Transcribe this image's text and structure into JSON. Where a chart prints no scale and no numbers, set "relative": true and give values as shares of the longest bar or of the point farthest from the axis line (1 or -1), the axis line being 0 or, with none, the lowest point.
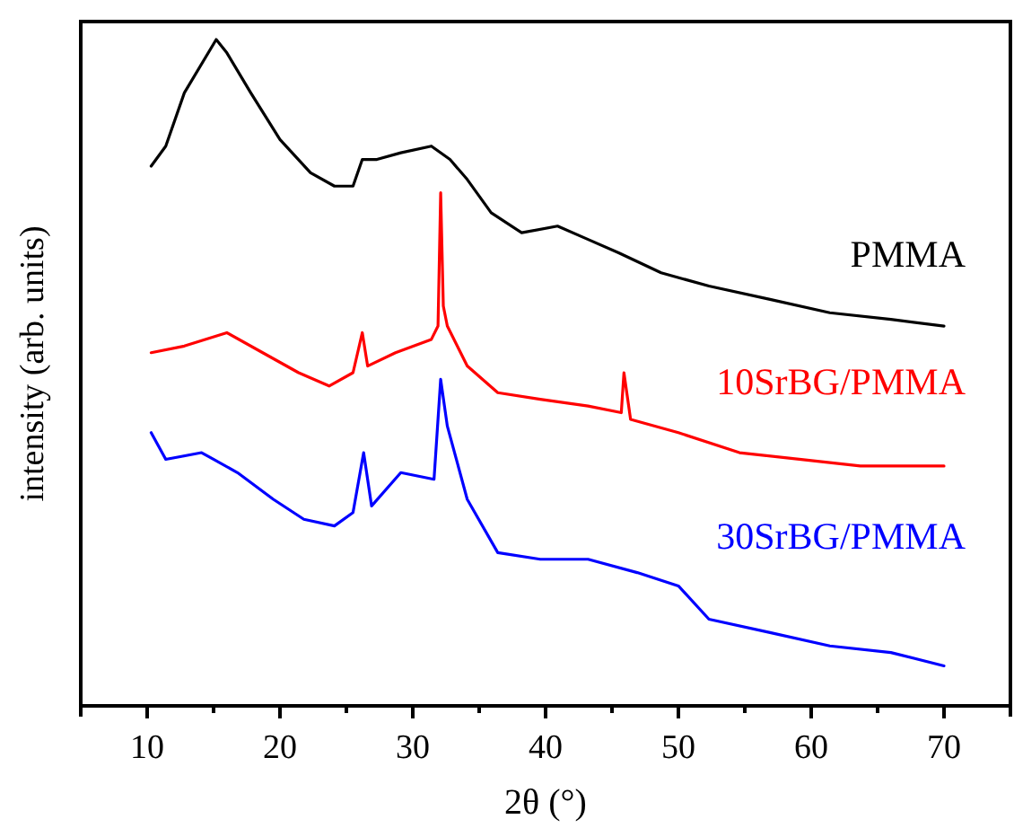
{
  "chart_data": {
    "type": "line",
    "xlabel": "2θ (°)",
    "ylabel": "intensity (arb. units)",
    "relative": true,
    "legend": false,
    "grid": false,
    "xlim": [
      5,
      75
    ],
    "xticks": [
      10,
      {
        "value": 15,
        "label": null
      },
      20,
      {
        "value": 25,
        "label": null
      },
      30,
      {
        "value": 35,
        "label": null
      },
      40,
      {
        "value": 45,
        "label": null
      },
      50,
      {
        "value": 55,
        "label": null
      },
      60,
      {
        "value": 65,
        "label": null
      },
      70
    ],
    "series": [
      {
        "name": "PMMA",
        "color": "#000000",
        "x": [
          10.3,
          11.4,
          12.8,
          15.2,
          16,
          17.8,
          20,
          22.3,
          24.1,
          25.5,
          26.2,
          27.3,
          29.1,
          31.4,
          32.8,
          34.1,
          35.9,
          38.2,
          40.9,
          43.2,
          45.5,
          48.7,
          52.3,
          56.9,
          61.4,
          66,
          70
        ],
        "values": [
          0.81,
          0.84,
          0.92,
          1.0,
          0.98,
          0.92,
          0.85,
          0.8,
          0.78,
          0.78,
          0.82,
          0.82,
          0.83,
          0.84,
          0.82,
          0.79,
          0.74,
          0.71,
          0.72,
          0.7,
          0.68,
          0.65,
          0.63,
          0.61,
          0.59,
          0.58,
          0.57
        ]
      },
      {
        "name": "10SrBG/PMMA",
        "color": "#ff0000",
        "x": [
          10.3,
          12.8,
          16,
          18.7,
          21.4,
          23.7,
          25.5,
          26.2,
          26.6,
          28.7,
          31.4,
          31.9,
          32.1,
          32.3,
          32.6,
          34.1,
          36.4,
          39.6,
          43.2,
          45.7,
          45.9,
          46.4,
          50,
          54.6,
          59.1,
          63.7,
          70
        ],
        "values": [
          0.53,
          0.54,
          0.56,
          0.53,
          0.5,
          0.48,
          0.5,
          0.56,
          0.51,
          0.53,
          0.55,
          0.57,
          0.77,
          0.6,
          0.57,
          0.51,
          0.47,
          0.46,
          0.45,
          0.44,
          0.5,
          0.43,
          0.41,
          0.38,
          0.37,
          0.36,
          0.36
        ]
      },
      {
        "name": "30SrBG/PMMA",
        "color": "#0000ff",
        "x": [
          10.3,
          11.4,
          14.1,
          16.8,
          19.5,
          21.8,
          24.1,
          25.5,
          26.3,
          26.9,
          29.1,
          31.6,
          32.1,
          32.6,
          34.1,
          36.4,
          39.6,
          43.2,
          46.9,
          50,
          52.3,
          56.9,
          61.4,
          66,
          70
        ],
        "values": [
          0.41,
          0.37,
          0.38,
          0.35,
          0.31,
          0.28,
          0.27,
          0.29,
          0.38,
          0.3,
          0.35,
          0.34,
          0.49,
          0.42,
          0.31,
          0.23,
          0.22,
          0.22,
          0.2,
          0.18,
          0.13,
          0.11,
          0.09,
          0.08,
          0.06
        ]
      }
    ]
  }
}
